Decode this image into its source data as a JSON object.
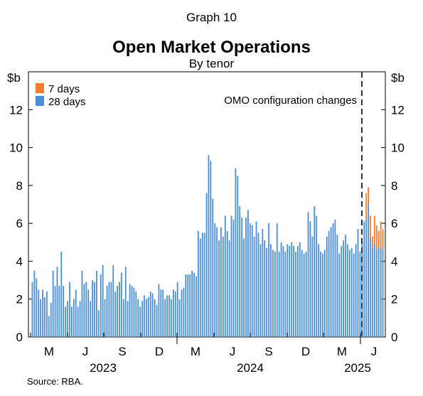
{
  "graph_label": "Graph 10",
  "chart_data": {
    "type": "bar",
    "stacked": true,
    "title": "Open Market Operations",
    "subtitle": "By tenor",
    "y_unit_left": "$b",
    "y_unit_right": "$b",
    "ylim": [
      0,
      14
    ],
    "yticks": [
      0,
      2,
      4,
      6,
      8,
      10,
      12
    ],
    "grid": false,
    "legend_position": "top-left",
    "month_ticks": [
      "M",
      "J",
      "S",
      "D",
      "M",
      "J",
      "S",
      "D",
      "M",
      "J"
    ],
    "year_labels": [
      "2023",
      "2024",
      "2025"
    ],
    "annotation": "OMO configuration changes",
    "series": [
      {
        "name": "7 days",
        "color": "#f07f2d",
        "values": [
          0,
          0,
          0,
          0,
          0,
          0,
          0,
          0,
          0,
          0,
          0,
          0,
          0,
          0,
          0,
          0,
          0,
          0,
          0,
          0,
          0,
          0,
          0,
          0,
          0,
          0,
          0,
          0,
          0,
          0,
          0,
          0,
          0,
          0,
          0,
          0,
          0,
          0,
          0,
          0,
          0,
          0,
          0,
          0,
          0,
          0,
          0,
          0,
          0,
          0,
          0,
          0,
          0,
          0,
          0,
          0,
          0,
          0,
          0,
          0,
          0,
          0,
          0,
          0,
          0,
          0,
          0,
          0,
          0,
          0,
          0,
          0,
          0,
          0,
          0,
          0,
          0,
          0,
          0,
          0,
          0,
          0,
          0,
          0,
          0,
          0,
          0,
          0,
          0,
          0,
          0,
          0,
          0,
          0,
          0,
          0,
          0,
          0,
          0,
          0,
          0,
          0,
          0,
          0,
          0,
          0,
          0,
          0,
          0,
          0,
          0,
          0,
          0,
          0,
          0,
          0,
          0,
          0,
          0,
          0,
          0,
          0,
          0,
          0,
          0,
          0,
          0,
          0,
          0,
          0,
          0,
          0,
          0,
          0,
          0,
          0,
          0,
          0,
          0,
          0,
          0,
          0,
          0,
          0,
          0,
          0,
          0,
          0,
          0,
          0,
          0,
          0,
          0,
          0,
          0,
          0,
          0,
          0,
          0,
          0,
          0,
          1.4,
          0.9,
          1.2,
          0.6,
          1.5,
          1.3,
          0.9,
          1.3,
          1.1,
          1.4
        ]
      },
      {
        "name": "28 days",
        "color": "#4a90d9",
        "values": [
          2.9,
          3.5,
          3.1,
          2.5,
          2.0,
          2.5,
          2.1,
          2.4,
          1.1,
          1.8,
          3.5,
          2.7,
          3.7,
          2.7,
          4.5,
          2.7,
          1.6,
          1.9,
          2.9,
          1.6,
          2.0,
          2.5,
          1.6,
          1.9,
          3.5,
          2.8,
          2.9,
          2.5,
          1.9,
          3.0,
          2.9,
          3.5,
          1.4,
          3.3,
          3.8,
          2.0,
          2.7,
          2.9,
          2.9,
          3.8,
          2.4,
          2.7,
          2.9,
          3.4,
          2.0,
          3.7,
          1.9,
          2.8,
          2.7,
          2.6,
          2.4,
          2.0,
          1.6,
          1.9,
          2.2,
          2.0,
          2.1,
          2.4,
          2.3,
          2.0,
          1.7,
          2.8,
          2.5,
          2.5,
          2.0,
          2.2,
          2.2,
          2.0,
          2.5,
          2.4,
          2.9,
          2.0,
          2.5,
          2.6,
          3.3,
          3.3,
          3.3,
          3.5,
          3.4,
          3.2,
          5.6,
          5.2,
          5.5,
          5.5,
          7.6,
          9.6,
          9.3,
          7.3,
          6.0,
          5.8,
          5.1,
          5.8,
          5.3,
          6.4,
          5.6,
          5.1,
          6.4,
          6.2,
          8.9,
          8.5,
          6.9,
          6.3,
          5.2,
          6.3,
          6.7,
          6.0,
          5.9,
          5.3,
          6.1,
          5.5,
          4.9,
          5.7,
          5.1,
          4.7,
          6.0,
          4.9,
          4.6,
          4.5,
          6.0,
          4.5,
          5.0,
          4.8,
          4.5,
          4.9,
          4.8,
          5.0,
          4.8,
          4.5,
          4.8,
          5.0,
          4.6,
          4.4,
          4.5,
          6.6,
          6.1,
          5.3,
          6.9,
          6.4,
          4.9,
          4.5,
          4.4,
          4.6,
          5.3,
          5.6,
          5.8,
          6.0,
          6.2,
          5.4,
          4.4,
          4.8,
          5.1,
          5.4,
          4.9,
          4.6,
          4.7,
          4.4,
          4.9,
          5.7,
          4.5,
          5.0,
          6.1,
          6.2,
          7.0,
          5.2,
          4.7,
          4.9,
          4.6,
          4.7,
          4.8,
          4.6
        ]
      }
    ],
    "source": "Source:  RBA."
  }
}
